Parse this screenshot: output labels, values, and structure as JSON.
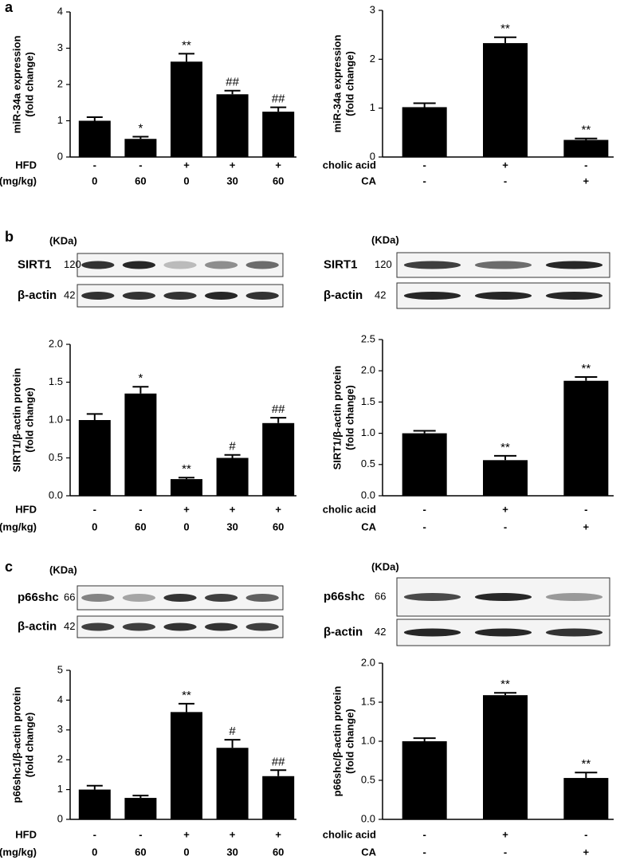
{
  "panel_labels": [
    "a",
    "b",
    "c"
  ],
  "blots": [
    {
      "unit": "(KDa)",
      "rows": [
        {
          "name": "SIRT1",
          "size": "120"
        },
        {
          "name": "β-actin",
          "size": "42"
        }
      ]
    },
    {
      "unit": "(KDa)",
      "rows": [
        {
          "name": "SIRT1",
          "size": "120"
        },
        {
          "name": "β-actin",
          "size": "42"
        }
      ]
    },
    {
      "unit": "(KDa)",
      "rows": [
        {
          "name": "p66shc",
          "size": "66"
        },
        {
          "name": "β-actin",
          "size": "42"
        }
      ]
    },
    {
      "unit": "(KDa)",
      "rows": [
        {
          "name": "p66shc",
          "size": "66"
        },
        {
          "name": "β-actin",
          "size": "42"
        }
      ]
    }
  ],
  "chart_data": [
    {
      "type": "bar",
      "ylabel": [
        "miR-34a expression",
        "(fold change)"
      ],
      "color": "#000000",
      "values": [
        1.0,
        0.5,
        2.63,
        1.73,
        1.25
      ],
      "errors": [
        0.1,
        0.06,
        0.22,
        0.1,
        0.12
      ],
      "annotations": [
        null,
        "*",
        "**",
        "##",
        "##"
      ],
      "ylim": [
        0,
        4
      ],
      "yticks": [
        0,
        1,
        2,
        3,
        4
      ],
      "treatments": [
        {
          "name": "HFD",
          "levels": [
            "-",
            "-",
            "+",
            "+",
            "+"
          ]
        },
        {
          "name": "CA(mg/kg)",
          "levels": [
            "0",
            "60",
            "0",
            "30",
            "60"
          ]
        }
      ]
    },
    {
      "type": "bar",
      "ylabel": [
        "miR-34a expression",
        "(fold change)"
      ],
      "color": "#000000",
      "values": [
        1.02,
        2.33,
        0.35
      ],
      "errors": [
        0.08,
        0.12,
        0.03
      ],
      "annotations": [
        null,
        "**",
        "**"
      ],
      "ylim": [
        0,
        3
      ],
      "yticks": [
        0,
        1,
        2,
        3
      ],
      "treatments": [
        {
          "name": "cholic acid",
          "levels": [
            "-",
            "+",
            "-"
          ]
        },
        {
          "name": "CA",
          "levels": [
            "-",
            "-",
            "+"
          ]
        }
      ]
    },
    {
      "type": "bar",
      "ylabel": [
        "SIRT1/β-actin protein",
        "(fold change)"
      ],
      "color": "#000000",
      "values": [
        1.0,
        1.35,
        0.22,
        0.5,
        0.96
      ],
      "errors": [
        0.08,
        0.09,
        0.02,
        0.04,
        0.07
      ],
      "annotations": [
        null,
        "*",
        "**",
        "#",
        "##"
      ],
      "ylim": [
        0,
        2
      ],
      "yticks": [
        {
          "value": 0,
          "label": "0.0"
        },
        0.5,
        {
          "value": 1,
          "label": "1.0"
        },
        1.5,
        {
          "value": 2,
          "label": "2.0"
        }
      ],
      "treatments": [
        {
          "name": "HFD",
          "levels": [
            "-",
            "-",
            "+",
            "+",
            "+"
          ]
        },
        {
          "name": "CA(mg/kg)",
          "levels": [
            "0",
            "60",
            "0",
            "30",
            "60"
          ]
        }
      ]
    },
    {
      "type": "bar",
      "ylabel": [
        "SIRT1/β-actin protein",
        "(fold change)"
      ],
      "color": "#000000",
      "values": [
        1.0,
        0.57,
        1.84
      ],
      "errors": [
        0.04,
        0.07,
        0.06
      ],
      "annotations": [
        null,
        "**",
        "**"
      ],
      "ylim": [
        0,
        2.5
      ],
      "yticks": [
        {
          "value": 0,
          "label": "0.0"
        },
        0.5,
        {
          "value": 1,
          "label": "1.0"
        },
        1.5,
        {
          "value": 2,
          "label": "2.0"
        },
        2.5
      ],
      "treatments": [
        {
          "name": "cholic acid",
          "levels": [
            "-",
            "+",
            "-"
          ]
        },
        {
          "name": "CA",
          "levels": [
            "-",
            "-",
            "+"
          ]
        }
      ]
    },
    {
      "type": "bar",
      "ylabel": [
        "p66shc1/β-actin protein",
        "(fold change)"
      ],
      "color": "#000000",
      "values": [
        1.0,
        0.72,
        3.6,
        2.4,
        1.45
      ],
      "errors": [
        0.13,
        0.08,
        0.28,
        0.27,
        0.2
      ],
      "annotations": [
        null,
        null,
        "**",
        "#",
        "##"
      ],
      "ylim": [
        0,
        5
      ],
      "yticks": [
        0,
        1,
        2,
        3,
        4,
        5
      ],
      "treatments": [
        {
          "name": "HFD",
          "levels": [
            "-",
            "-",
            "+",
            "+",
            "+"
          ]
        },
        {
          "name": "CA(mg/kg)",
          "levels": [
            "0",
            "60",
            "0",
            "30",
            "60"
          ]
        }
      ]
    },
    {
      "type": "bar",
      "ylabel": [
        "p66shc/β-actin protein",
        "(fold change)"
      ],
      "color": "#000000",
      "values": [
        1.0,
        1.59,
        0.53
      ],
      "errors": [
        0.04,
        0.03,
        0.07
      ],
      "annotations": [
        null,
        "**",
        "**"
      ],
      "ylim": [
        0,
        2
      ],
      "yticks": [
        {
          "value": 0,
          "label": "0.0"
        },
        0.5,
        {
          "value": 1,
          "label": "1.0"
        },
        1.5,
        {
          "value": 2,
          "label": "2.0"
        }
      ],
      "treatments": [
        {
          "name": "cholic acid",
          "levels": [
            "-",
            "+",
            "-"
          ]
        },
        {
          "name": "CA",
          "levels": [
            "-",
            "-",
            "+"
          ]
        }
      ]
    }
  ]
}
